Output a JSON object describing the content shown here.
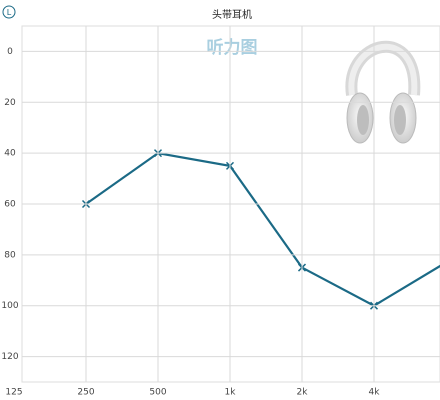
{
  "badge": "L",
  "chart_data": {
    "type": "line",
    "title": "头带耳机",
    "watermark": "听力图",
    "x": [
      250,
      500,
      1000,
      2000,
      4000,
      8000
    ],
    "series": [
      {
        "name": null,
        "color": "#1b6a86",
        "values": [
          60,
          40,
          45,
          85,
          100,
          83
        ]
      }
    ],
    "xlim": [
      125,
      8000
    ],
    "log_x": true,
    "xticks": [
      125,
      250,
      500,
      {
        "value": 1000,
        "label": "1k"
      },
      {
        "value": 2000,
        "label": "2k"
      },
      {
        "value": 4000,
        "label": "4k"
      }
    ],
    "ylim": [
      -10,
      130
    ],
    "y_reversed": true,
    "yticks": [
      0,
      20,
      40,
      60,
      80,
      100,
      120
    ],
    "grid": true
  }
}
